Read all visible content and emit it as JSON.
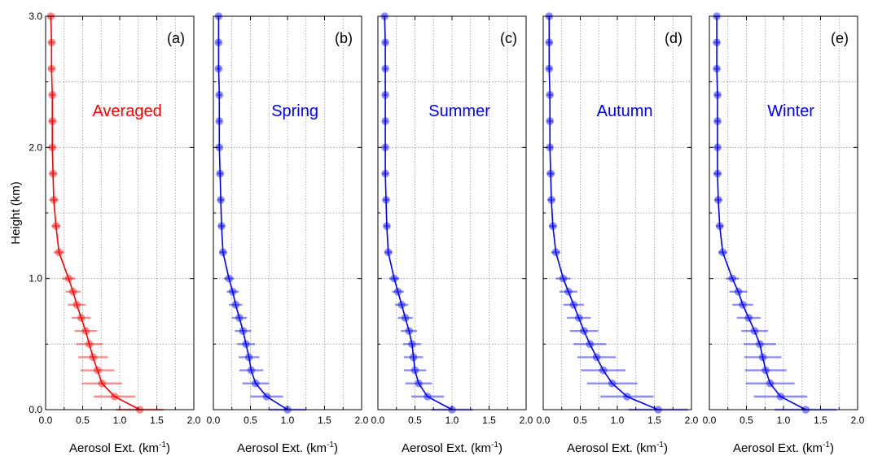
{
  "figure": {
    "ylabel": "Height (km)",
    "y_ticks": [
      "0.0",
      "1.0",
      "2.0",
      "3.0"
    ],
    "x_ticks": [
      "0.0",
      "0.5",
      "1.0",
      "1.5",
      "2.0"
    ]
  },
  "chart_data": [
    {
      "type": "line",
      "panel_label": "(a)",
      "series_label": "Averaged",
      "color": "#ff0000",
      "xlabel": "Aerosol Ext. (km",
      "xlabel_superscript": "-1",
      "xlabel_suffix": ")",
      "ylabel": "Height (km)",
      "xlim": [
        0,
        2
      ],
      "ylim": [
        0,
        3
      ],
      "grid": true,
      "heights": [
        0.0,
        0.1,
        0.2,
        0.3,
        0.4,
        0.5,
        0.6,
        0.7,
        0.8,
        0.9,
        1.0,
        1.2,
        1.4,
        1.6,
        1.8,
        2.0,
        2.2,
        2.4,
        2.6,
        2.8,
        3.0
      ],
      "values": [
        1.27,
        0.93,
        0.76,
        0.7,
        0.64,
        0.59,
        0.54,
        0.48,
        0.42,
        0.37,
        0.31,
        0.18,
        0.14,
        0.11,
        0.1,
        0.09,
        0.09,
        0.09,
        0.08,
        0.08,
        0.07
      ],
      "errors": [
        0.32,
        0.28,
        0.27,
        0.23,
        0.2,
        0.18,
        0.15,
        0.13,
        0.12,
        0.1,
        0.09,
        0.07,
        0.06,
        0.06,
        0.05,
        0.05,
        0.05,
        0.04,
        0.04,
        0.04,
        0.04
      ]
    },
    {
      "type": "line",
      "panel_label": "(b)",
      "series_label": "Spring",
      "color": "#0000ff",
      "xlabel": "Aerosol Ext. (km",
      "xlabel_superscript": "-1",
      "xlabel_suffix": ")",
      "xlim": [
        0,
        2
      ],
      "ylim": [
        0,
        3
      ],
      "grid": true,
      "heights": [
        0.0,
        0.1,
        0.2,
        0.3,
        0.4,
        0.5,
        0.6,
        0.7,
        0.8,
        0.9,
        1.0,
        1.2,
        1.4,
        1.6,
        1.8,
        2.0,
        2.2,
        2.4,
        2.6,
        2.8,
        3.0
      ],
      "values": [
        1.0,
        0.72,
        0.57,
        0.51,
        0.48,
        0.44,
        0.4,
        0.35,
        0.3,
        0.26,
        0.21,
        0.13,
        0.11,
        0.1,
        0.09,
        0.08,
        0.08,
        0.08,
        0.07,
        0.07,
        0.07
      ],
      "errors": [
        0.25,
        0.22,
        0.18,
        0.16,
        0.14,
        0.12,
        0.11,
        0.1,
        0.09,
        0.08,
        0.07,
        0.05,
        0.04,
        0.04,
        0.04,
        0.03,
        0.03,
        0.03,
        0.03,
        0.03,
        0.03
      ]
    },
    {
      "type": "line",
      "panel_label": "(c)",
      "series_label": "Summer",
      "color": "#0000ff",
      "xlabel": "Aerosol Ext. (km",
      "xlabel_superscript": "-1",
      "xlabel_suffix": ")",
      "xlim": [
        0,
        2
      ],
      "ylim": [
        0,
        3
      ],
      "grid": true,
      "heights": [
        0.0,
        0.1,
        0.2,
        0.3,
        0.4,
        0.5,
        0.6,
        0.7,
        0.8,
        0.9,
        1.0,
        1.2,
        1.4,
        1.6,
        1.8,
        2.0,
        2.2,
        2.4,
        2.6,
        2.8,
        3.0
      ],
      "values": [
        1.0,
        0.67,
        0.55,
        0.5,
        0.48,
        0.46,
        0.42,
        0.37,
        0.32,
        0.27,
        0.22,
        0.14,
        0.12,
        0.11,
        0.1,
        0.1,
        0.1,
        0.1,
        0.1,
        0.1,
        0.09
      ],
      "errors": [
        0.28,
        0.22,
        0.18,
        0.15,
        0.13,
        0.12,
        0.11,
        0.1,
        0.09,
        0.08,
        0.07,
        0.05,
        0.04,
        0.04,
        0.04,
        0.03,
        0.03,
        0.03,
        0.03,
        0.03,
        0.03
      ]
    },
    {
      "type": "line",
      "panel_label": "(d)",
      "series_label": "Autumn",
      "color": "#0000ff",
      "xlabel": "Aerosol Ext. (km",
      "xlabel_superscript": "-1",
      "xlabel_suffix": ")",
      "xlim": [
        0,
        2
      ],
      "ylim": [
        0,
        3
      ],
      "grid": true,
      "heights": [
        0.0,
        0.1,
        0.2,
        0.3,
        0.4,
        0.5,
        0.6,
        0.7,
        0.8,
        0.9,
        1.0,
        1.2,
        1.4,
        1.6,
        1.8,
        2.0,
        2.2,
        2.4,
        2.6,
        2.8,
        3.0
      ],
      "values": [
        1.55,
        1.13,
        0.93,
        0.81,
        0.72,
        0.63,
        0.55,
        0.48,
        0.41,
        0.34,
        0.27,
        0.17,
        0.13,
        0.11,
        0.1,
        0.09,
        0.09,
        0.09,
        0.08,
        0.08,
        0.08
      ],
      "errors": [
        0.4,
        0.36,
        0.34,
        0.3,
        0.26,
        0.22,
        0.19,
        0.16,
        0.14,
        0.12,
        0.1,
        0.06,
        0.05,
        0.05,
        0.05,
        0.04,
        0.04,
        0.04,
        0.04,
        0.04,
        0.04
      ]
    },
    {
      "type": "line",
      "panel_label": "(e)",
      "series_label": "Winter",
      "color": "#0000ff",
      "xlabel": "Aerosol Ext. (km",
      "xlabel_superscript": "-1",
      "xlabel_suffix": ")",
      "xlim": [
        0,
        2
      ],
      "ylim": [
        0,
        3
      ],
      "grid": true,
      "heights": [
        0.0,
        0.1,
        0.2,
        0.3,
        0.4,
        0.5,
        0.6,
        0.7,
        0.8,
        0.9,
        1.0,
        1.2,
        1.4,
        1.6,
        1.8,
        2.0,
        2.2,
        2.4,
        2.6,
        2.8,
        3.0
      ],
      "values": [
        1.3,
        0.96,
        0.82,
        0.76,
        0.72,
        0.68,
        0.61,
        0.53,
        0.45,
        0.39,
        0.31,
        0.18,
        0.14,
        0.12,
        0.11,
        0.11,
        0.11,
        0.11,
        0.1,
        0.1,
        0.1
      ],
      "errors": [
        0.42,
        0.36,
        0.33,
        0.28,
        0.25,
        0.22,
        0.18,
        0.16,
        0.14,
        0.12,
        0.09,
        0.06,
        0.05,
        0.05,
        0.05,
        0.04,
        0.04,
        0.04,
        0.04,
        0.04,
        0.04
      ]
    }
  ]
}
